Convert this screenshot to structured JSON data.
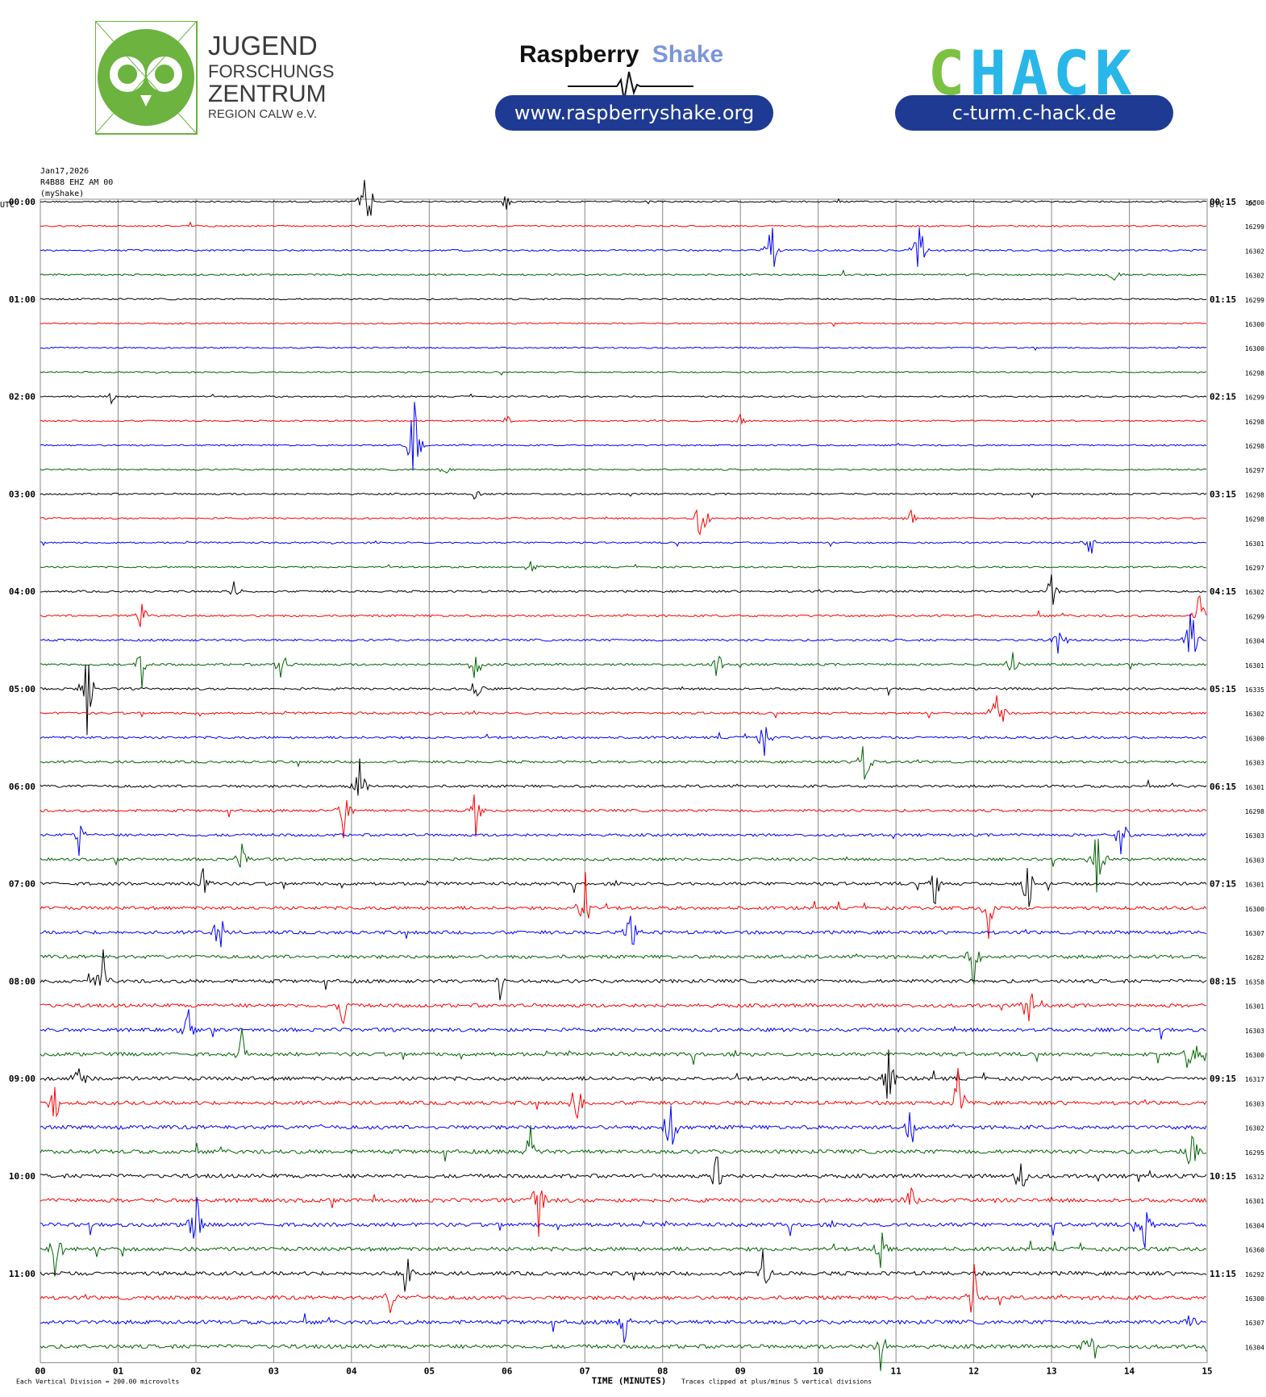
{
  "header": {
    "jfz_logo_lines": [
      "JUGEND",
      "FORSCHUNGS",
      "ZENTRUM",
      "REGION CALW e.V."
    ],
    "rs_logo_word1": "Raspberry",
    "rs_logo_word2": "Shake",
    "rs_url": "www.raspberryshake.org",
    "chack_logo": "CHACK",
    "chack_url": "c-turm.c-hack.de"
  },
  "colors": {
    "pill": "#1f3a93",
    "owl_green": "#6cb33f",
    "rs_blue": "#7b96d9",
    "chack_green": "#7bc142",
    "chack_cyan": "#29b6e8",
    "trace_colors": [
      "#000000",
      "#ff0000",
      "#0000ff",
      "#006400"
    ]
  },
  "chart_data": {
    "type": "line",
    "chart_kind": "helicorder",
    "meta_lines": [
      "Jan17,2026",
      "R4B88 EHZ AM 00",
      "(myShake)"
    ],
    "left_axis_title": "UTC",
    "right_axis_title": "UTC",
    "dc_title": "DC",
    "xlabel": "TIME (MINUTES)",
    "xlim": [
      0,
      15
    ],
    "x_ticks": [
      "00",
      "01",
      "02",
      "03",
      "04",
      "05",
      "06",
      "07",
      "08",
      "09",
      "10",
      "11",
      "12",
      "13",
      "14",
      "15"
    ],
    "footer_left": "Each Vertical Division =  200.00 microvolts",
    "footer_right": "Traces clipped at plus/minus 5 vertical divisions",
    "row_minutes": 15,
    "left_hour_labels": [
      "00:00",
      "01:00",
      "02:00",
      "03:00",
      "04:00",
      "05:00",
      "06:00",
      "07:00",
      "08:00",
      "09:00",
      "10:00",
      "11:00"
    ],
    "right_labels": [
      "00:15",
      "01:15",
      "02:15",
      "03:15",
      "04:15",
      "05:15",
      "06:15",
      "07:15",
      "08:15",
      "09:15",
      "10:15",
      "11:15"
    ],
    "dc_values": [
      "16300",
      "16299",
      "16302",
      "16302",
      "16299",
      "16300",
      "16300",
      "16298",
      "16299",
      "16298",
      "16298",
      "16297",
      "16298",
      "16298",
      "16301",
      "16297",
      "16302",
      "16299",
      "16304",
      "16301",
      "16335",
      "16302",
      "16300",
      "16303",
      "16301",
      "16298",
      "16303",
      "16303",
      "16301",
      "16300",
      "16307",
      "16282",
      "16358",
      "16301",
      "16303",
      "16300",
      "16317",
      "16303",
      "16302",
      "16295",
      "16312",
      "16301",
      "16304",
      "16360",
      "16292",
      "16300",
      "16307",
      "16304"
    ],
    "row_activity": [
      0.2,
      0.2,
      0.25,
      0.25,
      0.2,
      0.15,
      0.15,
      0.15,
      0.2,
      0.2,
      0.2,
      0.2,
      0.25,
      0.25,
      0.25,
      0.25,
      0.35,
      0.4,
      0.4,
      0.45,
      0.45,
      0.45,
      0.5,
      0.5,
      0.55,
      0.55,
      0.6,
      0.6,
      0.75,
      0.8,
      0.85,
      0.85,
      0.85,
      0.9,
      0.9,
      0.9,
      0.95,
      0.95,
      1.0,
      1.0,
      1.0,
      1.0,
      1.0,
      1.0,
      1.0,
      1.0,
      1.0,
      1.0
    ],
    "spikes": [
      {
        "row": 0,
        "minute": 4.2,
        "amp": 2.5
      },
      {
        "row": 0,
        "minute": 6.0,
        "amp": 0.5
      },
      {
        "row": 2,
        "minute": 9.4,
        "amp": 1.6
      },
      {
        "row": 2,
        "minute": 11.3,
        "amp": 1.8
      },
      {
        "row": 3,
        "minute": 13.8,
        "amp": 0.4
      },
      {
        "row": 8,
        "minute": 0.9,
        "amp": 0.4
      },
      {
        "row": 9,
        "minute": 6.0,
        "amp": 0.3
      },
      {
        "row": 9,
        "minute": 9.0,
        "amp": 0.4
      },
      {
        "row": 10,
        "minute": 4.8,
        "amp": 2.5
      },
      {
        "row": 11,
        "minute": 5.2,
        "amp": 0.3
      },
      {
        "row": 12,
        "minute": 5.6,
        "amp": 0.4
      },
      {
        "row": 13,
        "minute": 8.5,
        "amp": 1.7
      },
      {
        "row": 13,
        "minute": 11.2,
        "amp": 0.4
      },
      {
        "row": 14,
        "minute": 13.5,
        "amp": 0.8
      },
      {
        "row": 15,
        "minute": 6.3,
        "amp": 0.4
      },
      {
        "row": 16,
        "minute": 2.5,
        "amp": 0.5
      },
      {
        "row": 16,
        "minute": 13.0,
        "amp": 0.9
      },
      {
        "row": 17,
        "minute": 1.3,
        "amp": 0.8
      },
      {
        "row": 17,
        "minute": 14.9,
        "amp": 1.5
      },
      {
        "row": 18,
        "minute": 13.1,
        "amp": 1.2
      },
      {
        "row": 18,
        "minute": 14.8,
        "amp": 2.0
      },
      {
        "row": 19,
        "minute": 1.3,
        "amp": 1.2
      },
      {
        "row": 19,
        "minute": 3.1,
        "amp": 0.9
      },
      {
        "row": 19,
        "minute": 5.6,
        "amp": 1.0
      },
      {
        "row": 19,
        "minute": 8.7,
        "amp": 0.8
      },
      {
        "row": 19,
        "minute": 12.5,
        "amp": 1.0
      },
      {
        "row": 20,
        "minute": 0.6,
        "amp": 2.5
      },
      {
        "row": 20,
        "minute": 5.6,
        "amp": 0.8
      },
      {
        "row": 21,
        "minute": 12.3,
        "amp": 2.5
      },
      {
        "row": 22,
        "minute": 9.3,
        "amp": 1.3
      },
      {
        "row": 23,
        "minute": 10.6,
        "amp": 2.0
      },
      {
        "row": 24,
        "minute": 4.1,
        "amp": 1.6
      },
      {
        "row": 25,
        "minute": 3.9,
        "amp": 1.3
      },
      {
        "row": 25,
        "minute": 5.6,
        "amp": 1.3
      },
      {
        "row": 26,
        "minute": 0.5,
        "amp": 0.9
      },
      {
        "row": 26,
        "minute": 13.9,
        "amp": 1.2
      },
      {
        "row": 27,
        "minute": 13.6,
        "amp": 2.5
      },
      {
        "row": 27,
        "minute": 2.6,
        "amp": 0.8
      },
      {
        "row": 28,
        "minute": 2.1,
        "amp": 1.2
      },
      {
        "row": 28,
        "minute": 11.5,
        "amp": 1.2
      },
      {
        "row": 28,
        "minute": 12.7,
        "amp": 1.5
      },
      {
        "row": 29,
        "minute": 7.0,
        "amp": 2.0
      },
      {
        "row": 29,
        "minute": 12.2,
        "amp": 1.6
      },
      {
        "row": 30,
        "minute": 2.3,
        "amp": 1.5
      },
      {
        "row": 30,
        "minute": 7.6,
        "amp": 1.4
      },
      {
        "row": 31,
        "minute": 12.0,
        "amp": 2.0
      },
      {
        "row": 32,
        "minute": 0.8,
        "amp": 2.0
      },
      {
        "row": 32,
        "minute": 5.9,
        "amp": 1.1
      },
      {
        "row": 33,
        "minute": 3.9,
        "amp": 1.2
      },
      {
        "row": 33,
        "minute": 12.7,
        "amp": 1.6
      },
      {
        "row": 34,
        "minute": 1.9,
        "amp": 1.2
      },
      {
        "row": 35,
        "minute": 2.6,
        "amp": 1.3
      },
      {
        "row": 35,
        "minute": 14.8,
        "amp": 1.8
      },
      {
        "row": 36,
        "minute": 0.5,
        "amp": 1.3
      },
      {
        "row": 36,
        "minute": 10.9,
        "amp": 1.5
      },
      {
        "row": 37,
        "minute": 0.2,
        "amp": 1.2
      },
      {
        "row": 37,
        "minute": 6.9,
        "amp": 1.5
      },
      {
        "row": 37,
        "minute": 11.8,
        "amp": 1.7
      },
      {
        "row": 38,
        "minute": 8.1,
        "amp": 2.0
      },
      {
        "row": 38,
        "minute": 11.2,
        "amp": 1.4
      },
      {
        "row": 39,
        "minute": 6.3,
        "amp": 1.2
      },
      {
        "row": 39,
        "minute": 14.8,
        "amp": 2.0
      },
      {
        "row": 40,
        "minute": 8.7,
        "amp": 1.6
      },
      {
        "row": 40,
        "minute": 12.6,
        "amp": 1.3
      },
      {
        "row": 41,
        "minute": 6.4,
        "amp": 2.0
      },
      {
        "row": 41,
        "minute": 11.2,
        "amp": 1.3
      },
      {
        "row": 42,
        "minute": 2.0,
        "amp": 1.8
      },
      {
        "row": 42,
        "minute": 14.2,
        "amp": 1.6
      },
      {
        "row": 43,
        "minute": 0.2,
        "amp": 1.6
      },
      {
        "row": 43,
        "minute": 10.8,
        "amp": 1.2
      },
      {
        "row": 44,
        "minute": 4.7,
        "amp": 1.2
      },
      {
        "row": 44,
        "minute": 9.3,
        "amp": 1.5
      },
      {
        "row": 45,
        "minute": 4.5,
        "amp": 0.9
      },
      {
        "row": 45,
        "minute": 12.0,
        "amp": 1.6
      },
      {
        "row": 46,
        "minute": 7.5,
        "amp": 1.2
      },
      {
        "row": 46,
        "minute": 14.8,
        "amp": 0.9
      },
      {
        "row": 47,
        "minute": 10.8,
        "amp": 1.3
      },
      {
        "row": 47,
        "minute": 13.5,
        "amp": 1.9
      }
    ]
  }
}
